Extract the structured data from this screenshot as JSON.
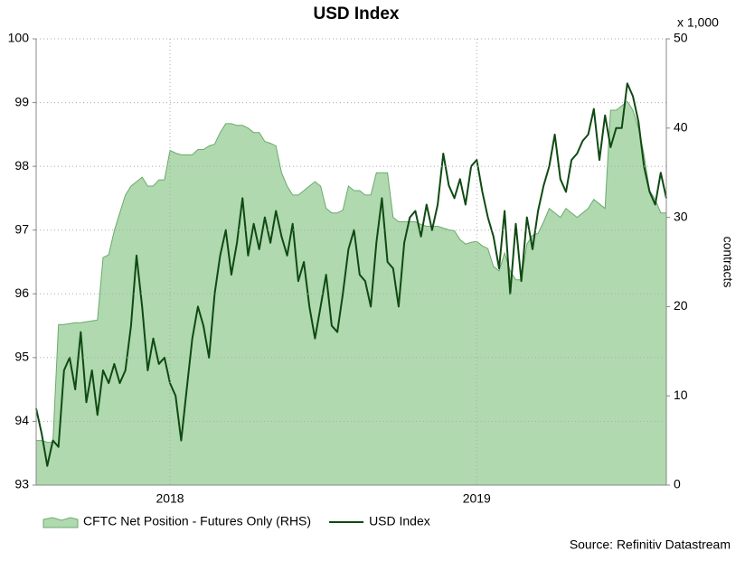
{
  "chart_data": {
    "type": "line",
    "title": "USD Index",
    "y2_unit": "x 1,000",
    "y2label": "contracts",
    "source": "Source: Refinitiv Datastream",
    "categories": [
      null,
      null,
      null,
      null,
      null,
      null,
      null,
      null,
      null,
      null,
      null,
      null,
      null,
      null,
      null,
      null,
      null,
      null,
      null,
      null,
      null,
      null,
      null,
      null,
      "2018",
      null,
      null,
      null,
      null,
      null,
      null,
      null,
      null,
      null,
      null,
      null,
      null,
      null,
      null,
      null,
      null,
      null,
      null,
      null,
      null,
      null,
      null,
      null,
      null,
      null,
      null,
      null,
      null,
      null,
      null,
      null,
      null,
      null,
      null,
      null,
      null,
      null,
      null,
      null,
      null,
      null,
      null,
      null,
      null,
      null,
      null,
      null,
      null,
      null,
      null,
      null,
      null,
      null,
      null,
      "2019",
      null,
      null,
      null,
      null,
      null,
      null,
      null,
      null,
      null,
      null,
      null,
      null,
      null,
      null,
      null,
      null,
      null,
      null,
      null,
      null,
      null,
      null,
      null,
      null,
      null,
      null,
      null,
      null,
      null,
      null,
      null,
      null,
      null,
      null
    ],
    "ylim": [
      93,
      100
    ],
    "yticks": [
      93,
      94,
      95,
      96,
      97,
      98,
      99,
      100
    ],
    "y2lim": [
      0,
      50
    ],
    "y2ticks": [
      0,
      10,
      20,
      30,
      40,
      50
    ],
    "grid": true,
    "legend": "bottom",
    "series": [
      {
        "name": "CFTC Net Position - Futures Only (RHS)",
        "color": "#b0d9b0",
        "stroke": "#6aaa6a",
        "kind": "area",
        "axis": "y2",
        "values": [
          5,
          5,
          4.8,
          4.8,
          18,
          18,
          18.1,
          18.2,
          18.2,
          18.3,
          18.4,
          18.5,
          25.5,
          25.8,
          28.5,
          30.5,
          32.5,
          33.5,
          34,
          34.5,
          33.5,
          33.5,
          34.2,
          34.2,
          37.5,
          37.2,
          37,
          37,
          37,
          37.6,
          37.6,
          38,
          38.2,
          39.5,
          40.5,
          40.5,
          40.3,
          40.3,
          40,
          39.5,
          39.5,
          38.5,
          38.3,
          38,
          35,
          33.5,
          32.5,
          32.5,
          33,
          33.5,
          34,
          33.5,
          31,
          30.5,
          30.5,
          30.8,
          33.5,
          33,
          33,
          32.5,
          32.5,
          35,
          35,
          35,
          30,
          29.5,
          29.5,
          29.5,
          29.5,
          29.2,
          29,
          29,
          29,
          28.8,
          28.6,
          28.5,
          27.5,
          27,
          27.2,
          27.3,
          26.8,
          26.5,
          24.5,
          24,
          26,
          24,
          23,
          23,
          27,
          28,
          28.2,
          29.5,
          31,
          30.5,
          30,
          31,
          30.5,
          30,
          30.5,
          31,
          32,
          31.5,
          31,
          42,
          42,
          42.5,
          43,
          42,
          40,
          37,
          33,
          32,
          30.5,
          30.5
        ]
      },
      {
        "name": "USD Index",
        "color": "#0f4a12",
        "kind": "line",
        "values": [
          94.2,
          93.8,
          93.3,
          93.7,
          93.6,
          94.8,
          95,
          94.5,
          95.4,
          94.3,
          94.8,
          94.1,
          94.8,
          94.6,
          94.9,
          94.6,
          94.8,
          95.5,
          96.6,
          95.8,
          94.8,
          95.3,
          94.9,
          95,
          94.6,
          94.4,
          93.7,
          94.5,
          95.3,
          95.8,
          95.5,
          95,
          96,
          96.6,
          97,
          96.3,
          96.8,
          97.5,
          96.6,
          97.1,
          96.7,
          97.2,
          96.8,
          97.3,
          96.9,
          96.6,
          97.1,
          96.2,
          96.5,
          95.8,
          95.3,
          95.8,
          96.3,
          95.5,
          95.4,
          96,
          96.7,
          97,
          96.3,
          96.2,
          95.8,
          96.8,
          97.5,
          96.5,
          96.4,
          95.8,
          96.8,
          97.2,
          97.3,
          96.9,
          97.4,
          97,
          97.4,
          98.2,
          97.7,
          97.5,
          97.8,
          97.4,
          98,
          98.1,
          97.6,
          97.2,
          96.9,
          96.4,
          97.3,
          96,
          97.1,
          96.2,
          97.2,
          96.7,
          97.3,
          97.7,
          98,
          98.5,
          97.8,
          97.6,
          98.1,
          98.2,
          98.4,
          98.5,
          98.9,
          98.1,
          98.8,
          98.3,
          98.6,
          98.6,
          99.3,
          99.1,
          98.7,
          98,
          97.6,
          97.4,
          97.9,
          97.5
        ]
      }
    ]
  }
}
